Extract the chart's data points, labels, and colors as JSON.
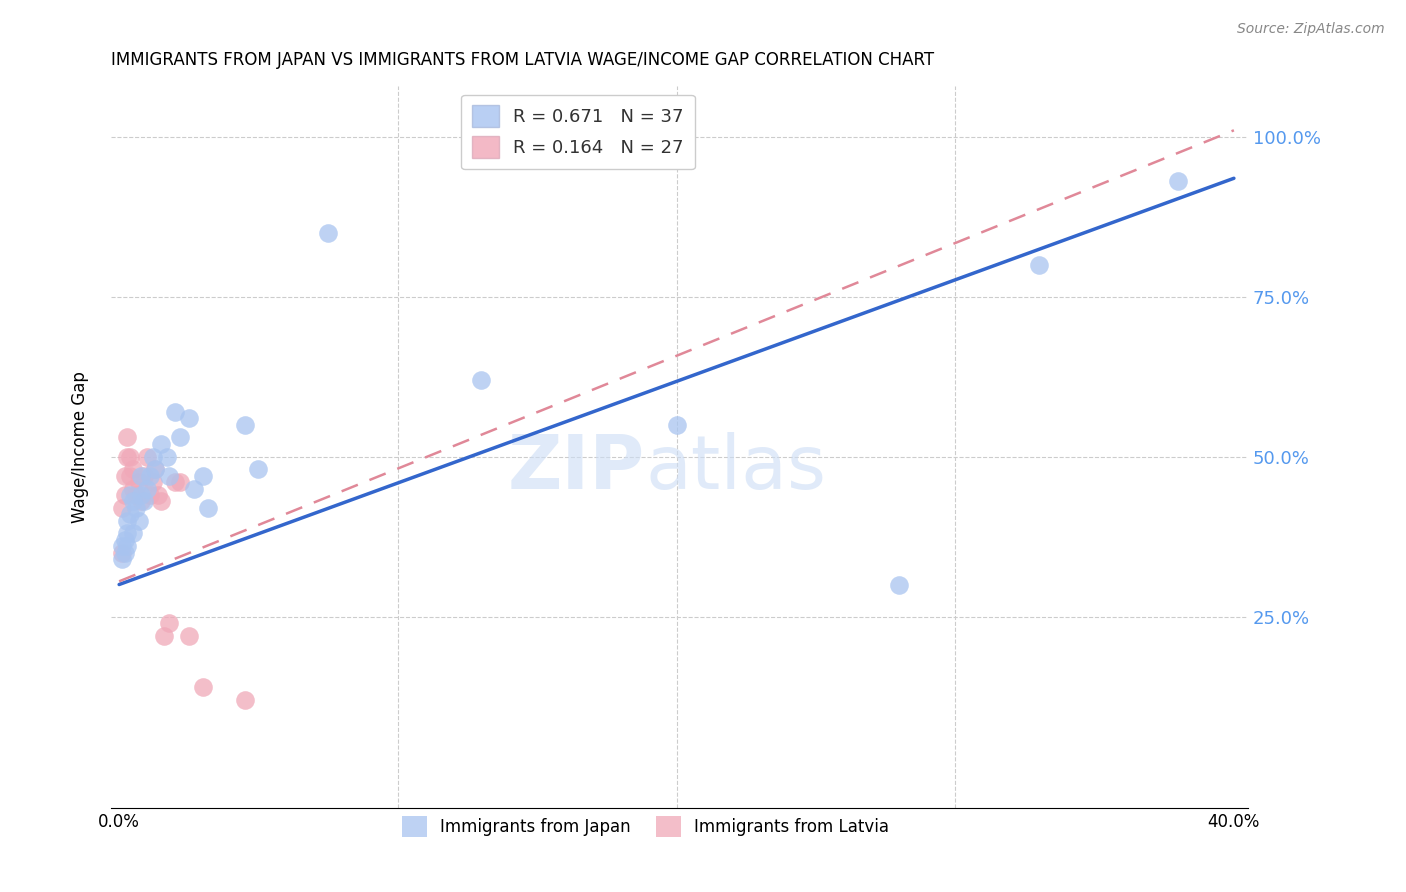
{
  "title": "IMMIGRANTS FROM JAPAN VS IMMIGRANTS FROM LATVIA WAGE/INCOME GAP CORRELATION CHART",
  "source": "Source: ZipAtlas.com",
  "ylabel": "Wage/Income Gap",
  "ytick_values": [
    0.25,
    0.5,
    0.75,
    1.0
  ],
  "ytick_labels": [
    "25.0%",
    "50.0%",
    "75.0%",
    "100.0%"
  ],
  "xlim": [
    -0.003,
    0.405
  ],
  "ylim": [
    -0.05,
    1.08
  ],
  "xtick_positions": [
    0.0,
    0.1,
    0.2,
    0.3,
    0.4
  ],
  "xtick_labels": [
    "0.0%",
    "",
    "",
    "",
    "40.0%"
  ],
  "japan_R": 0.671,
  "japan_N": 37,
  "latvia_R": 0.164,
  "latvia_N": 27,
  "japan_color": "#a8c4f0",
  "latvia_color": "#f0a8b8",
  "japan_line_color": "#3366cc",
  "latvia_line_color": "#e08898",
  "right_axis_color": "#5599ee",
  "watermark_zip": "ZIP",
  "watermark_atlas": "atlas",
  "japan_x": [
    0.001,
    0.001,
    0.002,
    0.002,
    0.003,
    0.003,
    0.003,
    0.004,
    0.004,
    0.005,
    0.005,
    0.006,
    0.007,
    0.008,
    0.008,
    0.009,
    0.01,
    0.011,
    0.012,
    0.013,
    0.015,
    0.017,
    0.018,
    0.02,
    0.022,
    0.025,
    0.027,
    0.03,
    0.032,
    0.045,
    0.05,
    0.075,
    0.13,
    0.2,
    0.28,
    0.33,
    0.38
  ],
  "japan_y": [
    0.34,
    0.36,
    0.35,
    0.37,
    0.38,
    0.4,
    0.36,
    0.41,
    0.44,
    0.38,
    0.43,
    0.42,
    0.4,
    0.44,
    0.47,
    0.43,
    0.45,
    0.47,
    0.5,
    0.48,
    0.52,
    0.5,
    0.47,
    0.57,
    0.53,
    0.56,
    0.45,
    0.47,
    0.42,
    0.55,
    0.48,
    0.85,
    0.62,
    0.55,
    0.3,
    0.8,
    0.93
  ],
  "latvia_x": [
    0.001,
    0.001,
    0.002,
    0.002,
    0.003,
    0.003,
    0.004,
    0.004,
    0.005,
    0.005,
    0.006,
    0.007,
    0.008,
    0.009,
    0.01,
    0.011,
    0.012,
    0.013,
    0.014,
    0.015,
    0.016,
    0.018,
    0.02,
    0.022,
    0.025,
    0.03,
    0.045
  ],
  "latvia_y": [
    0.35,
    0.42,
    0.44,
    0.47,
    0.5,
    0.53,
    0.47,
    0.5,
    0.45,
    0.48,
    0.44,
    0.46,
    0.43,
    0.47,
    0.5,
    0.44,
    0.46,
    0.48,
    0.44,
    0.43,
    0.22,
    0.24,
    0.46,
    0.46,
    0.22,
    0.14,
    0.12
  ],
  "japan_line_x": [
    0.0,
    0.4
  ],
  "japan_line_y": [
    0.3,
    0.935
  ],
  "latvia_line_x": [
    0.0,
    0.4
  ],
  "latvia_line_y": [
    0.305,
    1.01
  ]
}
